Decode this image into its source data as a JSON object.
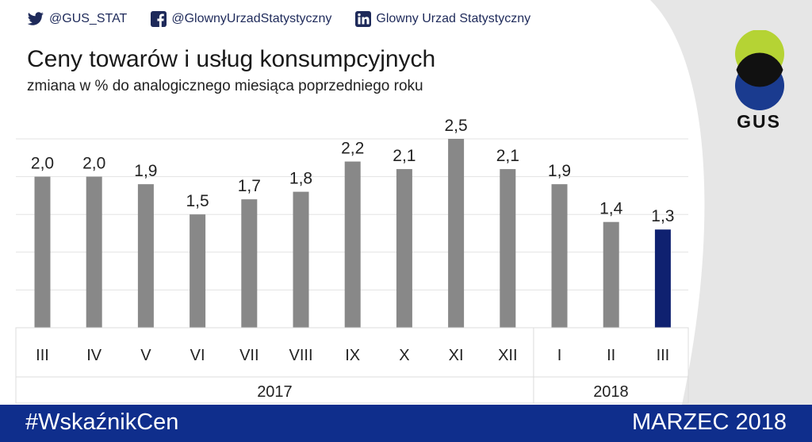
{
  "header": {
    "twitter": "@GUS_STAT",
    "facebook": "@GlownyUrzadStatystyczny",
    "linkedin": "Glowny Urzad Statystyczny"
  },
  "logo_text": "GUS",
  "colors": {
    "bar_default": "#888888",
    "bar_highlight": "#0f2170",
    "footer": "#0f2e8c",
    "logo_top": "#b5d334",
    "logo_bottom": "#1a3b8f"
  },
  "chart_data": {
    "type": "bar",
    "title": "Ceny towarów i usług konsumpcyjnych",
    "subtitle": "zmiana w % do analogicznego miesiąca poprzedniego roku",
    "categories": [
      "III",
      "IV",
      "V",
      "VI",
      "VII",
      "VIII",
      "IX",
      "X",
      "XI",
      "XII",
      "I",
      "II",
      "III"
    ],
    "values": [
      2.0,
      2.0,
      1.9,
      1.5,
      1.7,
      1.8,
      2.2,
      2.1,
      2.5,
      2.1,
      1.9,
      1.4,
      1.3
    ],
    "value_labels": [
      "2,0",
      "2,0",
      "1,9",
      "1,5",
      "1,7",
      "1,8",
      "2,2",
      "2,1",
      "2,5",
      "2,1",
      "1,9",
      "1,4",
      "1,3"
    ],
    "year_groups": [
      {
        "label": "2017",
        "count": 10
      },
      {
        "label": "2018",
        "count": 3
      }
    ],
    "highlight_index": 12,
    "ylim": [
      0,
      2.5
    ],
    "grid": true
  },
  "footer": {
    "hashtag": "#WskaźnikCen",
    "period": "MARZEC 2018"
  }
}
